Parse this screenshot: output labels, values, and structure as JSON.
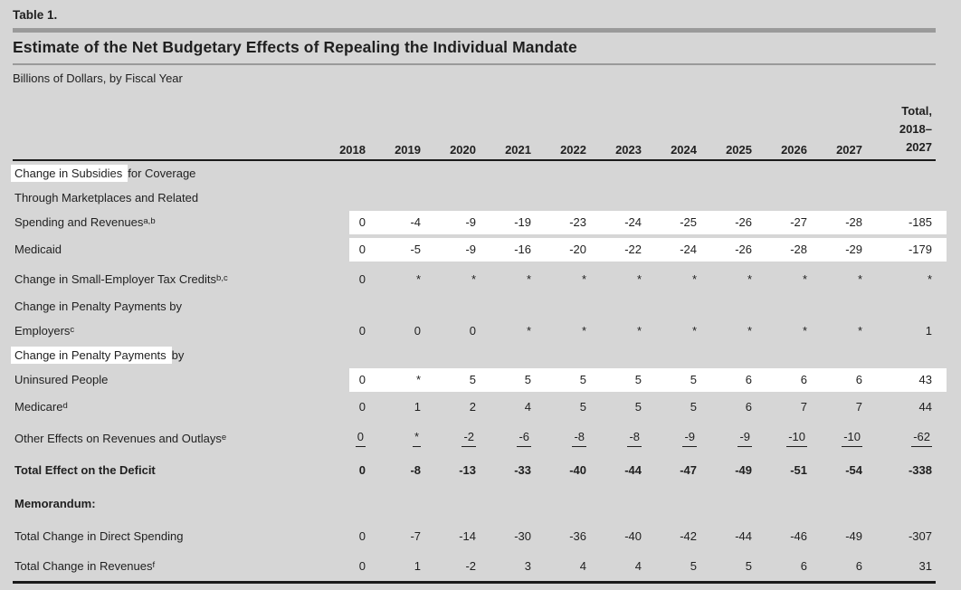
{
  "page": {
    "table_label": "Table 1.",
    "title": "Estimate of the Net Budgetary Effects of Repealing the Individual Mandate",
    "subtitle": "Billions of Dollars, by Fiscal Year"
  },
  "colors": {
    "page_background": "#d6d6d6",
    "highlight_band": "#ffffff",
    "rule_gray": "#9a9a9a",
    "rule_black": "#1a1a1a",
    "text": "#1f1f1f"
  },
  "table": {
    "year_columns": [
      "2018",
      "2019",
      "2020",
      "2021",
      "2022",
      "2023",
      "2024",
      "2025",
      "2026",
      "2027"
    ],
    "total_column_lines": [
      "Total,",
      "2018–",
      "2027"
    ],
    "rows": [
      {
        "kind": "line",
        "label": "Change in Subsidies for Coverage",
        "indent": 0,
        "highlight_label": "Change in Subsidies"
      },
      {
        "kind": "line",
        "label": "Through Marketplaces and Related",
        "indent": 1
      },
      {
        "kind": "data",
        "label": "Spending and Revenues",
        "sup": "a,b",
        "indent": 1,
        "continuation": true,
        "highlight_values": true,
        "values": [
          "0",
          "-4",
          "-9",
          "-19",
          "-23",
          "-24",
          "-25",
          "-26",
          "-27",
          "-28",
          "-185"
        ]
      },
      {
        "kind": "data",
        "label": "Medicaid",
        "indent": 0,
        "highlight_values": true,
        "values": [
          "0",
          "-5",
          "-9",
          "-16",
          "-20",
          "-22",
          "-24",
          "-26",
          "-28",
          "-29",
          "-179"
        ]
      },
      {
        "kind": "data",
        "label": "Change in Small-Employer Tax Credits",
        "sup": "b,c",
        "indent": 0,
        "values": [
          "0",
          "*",
          "*",
          "*",
          "*",
          "*",
          "*",
          "*",
          "*",
          "*",
          "*"
        ]
      },
      {
        "kind": "line",
        "label": "Change in Penalty Payments by",
        "indent": 0
      },
      {
        "kind": "data",
        "label": "Employers",
        "sup": "c",
        "indent": 1,
        "continuation": true,
        "values": [
          "0",
          "0",
          "0",
          "*",
          "*",
          "*",
          "*",
          "*",
          "*",
          "*",
          "1"
        ]
      },
      {
        "kind": "line",
        "label": "Change in Penalty Payments by",
        "indent": 0,
        "highlight_label": "Change in Penalty Payments"
      },
      {
        "kind": "data",
        "label": "Uninsured People",
        "indent": 1,
        "continuation": true,
        "highlight_values": true,
        "values": [
          "0",
          "*",
          "5",
          "5",
          "5",
          "5",
          "5",
          "6",
          "6",
          "6",
          "43"
        ]
      },
      {
        "kind": "data",
        "label": "Medicare",
        "sup": "d",
        "indent": 0,
        "values": [
          "0",
          "1",
          "2",
          "4",
          "5",
          "5",
          "5",
          "6",
          "7",
          "7",
          "44"
        ]
      },
      {
        "kind": "data",
        "label": "Other Effects on Revenues and Outlays",
        "sup": "e",
        "indent": 0,
        "underline_values": true,
        "values": [
          "0",
          "*",
          "-2",
          "-6",
          "-8",
          "-8",
          "-9",
          "-9",
          "-10",
          "-10",
          "-62"
        ]
      },
      {
        "kind": "data",
        "label": "Total Effect on the Deficit",
        "indent": 2,
        "bold": true,
        "values": [
          "0",
          "-8",
          "-13",
          "-33",
          "-40",
          "-44",
          "-47",
          "-49",
          "-51",
          "-54",
          "-338"
        ]
      },
      {
        "kind": "section",
        "label": "Memorandum:",
        "indent": 0,
        "bold": true
      },
      {
        "kind": "data",
        "label": "Total Change in Direct Spending",
        "indent": 0,
        "values": [
          "0",
          "-7",
          "-14",
          "-30",
          "-36",
          "-40",
          "-42",
          "-44",
          "-46",
          "-49",
          "-307"
        ]
      },
      {
        "kind": "data",
        "label": "Total Change in Revenues",
        "sup": "f",
        "indent": 0,
        "values": [
          "0",
          "1",
          "-2",
          "3",
          "4",
          "4",
          "5",
          "5",
          "6",
          "6",
          "31"
        ]
      }
    ]
  }
}
